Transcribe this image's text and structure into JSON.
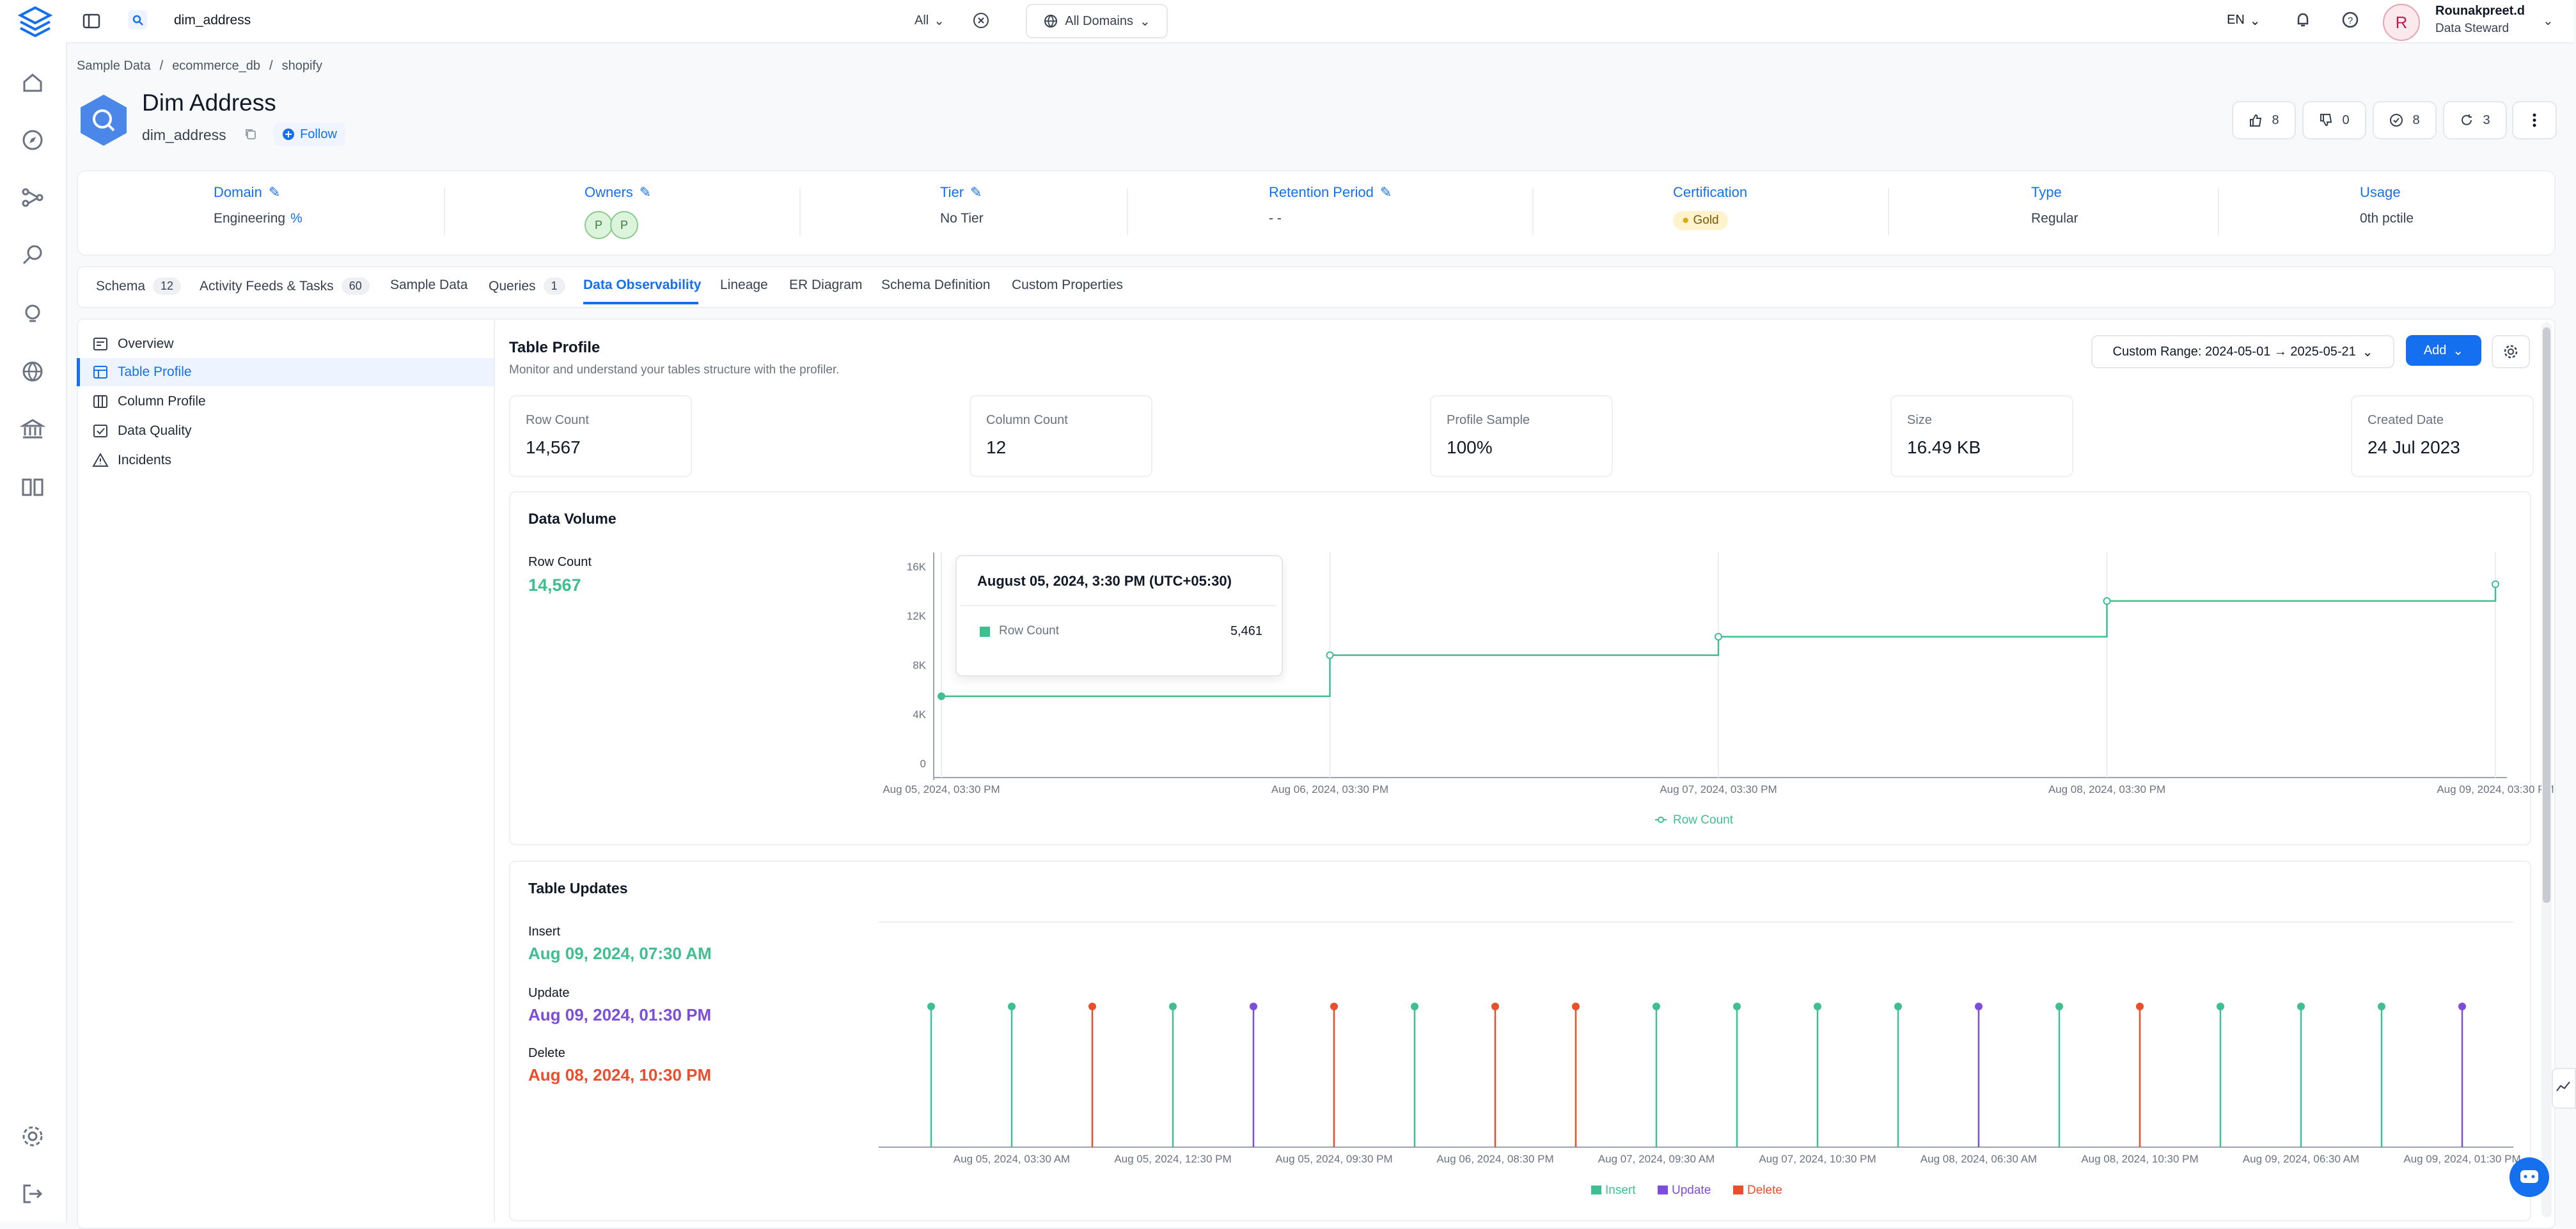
{
  "topbar": {
    "search_value": "dim_address",
    "search_scope": "All",
    "domain_selector": "All Domains",
    "language": "EN",
    "user_initial": "R",
    "user_name": "Rounakpreet.d",
    "user_role": "Data Steward"
  },
  "breadcrumb": [
    "Sample Data",
    "ecommerce_db",
    "shopify"
  ],
  "entity": {
    "title": "Dim Address",
    "name": "dim_address",
    "follow_label": "Follow",
    "counters": [
      {
        "icon": "thumbs-up-icon",
        "value": "8"
      },
      {
        "icon": "thumbs-down-icon",
        "value": "0"
      },
      {
        "icon": "check-circle-icon",
        "value": "8"
      },
      {
        "icon": "refresh-icon",
        "value": "3"
      }
    ]
  },
  "info": {
    "domain_label": "Domain",
    "domain_value": "Engineering",
    "owners_label": "Owners",
    "owners": [
      "P",
      "P"
    ],
    "tier_label": "Tier",
    "tier_value": "No Tier",
    "retention_label": "Retention Period",
    "retention_value": "- -",
    "certification_label": "Certification",
    "certification_value": "Gold",
    "type_label": "Type",
    "type_value": "Regular",
    "usage_label": "Usage",
    "usage_value": "0th pctile"
  },
  "tabs": [
    {
      "label": "Schema",
      "count": "12"
    },
    {
      "label": "Activity Feeds & Tasks",
      "count": "60"
    },
    {
      "label": "Sample Data",
      "count": ""
    },
    {
      "label": "Queries",
      "count": "1"
    },
    {
      "label": "Data Observability",
      "count": "",
      "active": true
    },
    {
      "label": "Lineage",
      "count": ""
    },
    {
      "label": "ER Diagram",
      "count": ""
    },
    {
      "label": "Schema Definition",
      "count": ""
    },
    {
      "label": "Custom Properties",
      "count": ""
    }
  ],
  "sidebar": {
    "items": [
      {
        "label": "Overview",
        "icon": "overview-icon"
      },
      {
        "label": "Table Profile",
        "icon": "table-profile-icon",
        "active": true
      },
      {
        "label": "Column Profile",
        "icon": "column-profile-icon"
      },
      {
        "label": "Data Quality",
        "icon": "data-quality-icon"
      },
      {
        "label": "Incidents",
        "icon": "incidents-icon"
      }
    ]
  },
  "profile": {
    "title": "Table Profile",
    "subtitle": "Monitor and understand your tables structure with the profiler.",
    "date_range": "Custom Range: 2024-05-01 → 2025-05-21",
    "add_label": "Add",
    "stats": [
      {
        "label": "Row Count",
        "value": "14,567"
      },
      {
        "label": "Column Count",
        "value": "12"
      },
      {
        "label": "Profile Sample",
        "value": "100%"
      },
      {
        "label": "Size",
        "value": "16.49 KB"
      },
      {
        "label": "Created Date",
        "value": "24 Jul 2023"
      }
    ]
  },
  "data_volume": {
    "title": "Data Volume",
    "metric_label": "Row Count",
    "metric_value": "14,567",
    "tooltip_title": "August 05, 2024, 3:30 PM (UTC+05:30)",
    "tooltip_series": "Row Count",
    "tooltip_value": "5,461"
  },
  "table_updates": {
    "title": "Table Updates",
    "insert_label": "Insert",
    "insert_value": "Aug 09, 2024, 07:30 AM",
    "update_label": "Update",
    "update_value": "Aug 09, 2024, 01:30 PM",
    "delete_label": "Delete",
    "delete_value": "Aug 08, 2024, 10:30 PM"
  },
  "colors": {
    "insert": "#3fbf8f",
    "update": "#7c4ddb",
    "delete": "#ea4f2c",
    "accent": "#1570ef"
  },
  "chart_data": [
    {
      "type": "line",
      "step": true,
      "x": [
        "Aug 05, 2024, 03:30 PM",
        "Aug 06, 2024, 03:30 PM",
        "Aug 07, 2024, 03:30 PM",
        "Aug 08, 2024, 03:30 PM",
        "Aug 09, 2024, 03:30 PM"
      ],
      "series": [
        {
          "name": "Row Count",
          "values": [
            5461,
            8800,
            10300,
            13200,
            14567
          ]
        }
      ],
      "yticks": [
        "0",
        "4K",
        "8K",
        "12K",
        "16K"
      ],
      "ylim": [
        0,
        16000
      ],
      "legend": "bottom-center"
    },
    {
      "type": "scatter",
      "stem": true,
      "xticks": [
        "Aug 05, 2024, 03:30 AM",
        "Aug 05, 2024, 12:30 PM",
        "Aug 05, 2024, 09:30 PM",
        "Aug 06, 2024, 08:30 PM",
        "Aug 07, 2024, 09:30 AM",
        "Aug 07, 2024, 10:30 PM",
        "Aug 08, 2024, 06:30 AM",
        "Aug 08, 2024, 10:30 PM",
        "Aug 09, 2024, 06:30 AM",
        "Aug 09, 2024, 01:30 PM"
      ],
      "events": [
        "Insert",
        "Insert",
        "Delete",
        "Insert",
        "Update",
        "Delete",
        "Insert",
        "Delete",
        "Delete",
        "Insert",
        "Insert",
        "Insert",
        "Insert",
        "Update",
        "Insert",
        "Delete",
        "Insert",
        "Insert",
        "Insert",
        "Update"
      ],
      "series_names": [
        "Insert",
        "Update",
        "Delete"
      ],
      "legend": "bottom-center"
    }
  ]
}
